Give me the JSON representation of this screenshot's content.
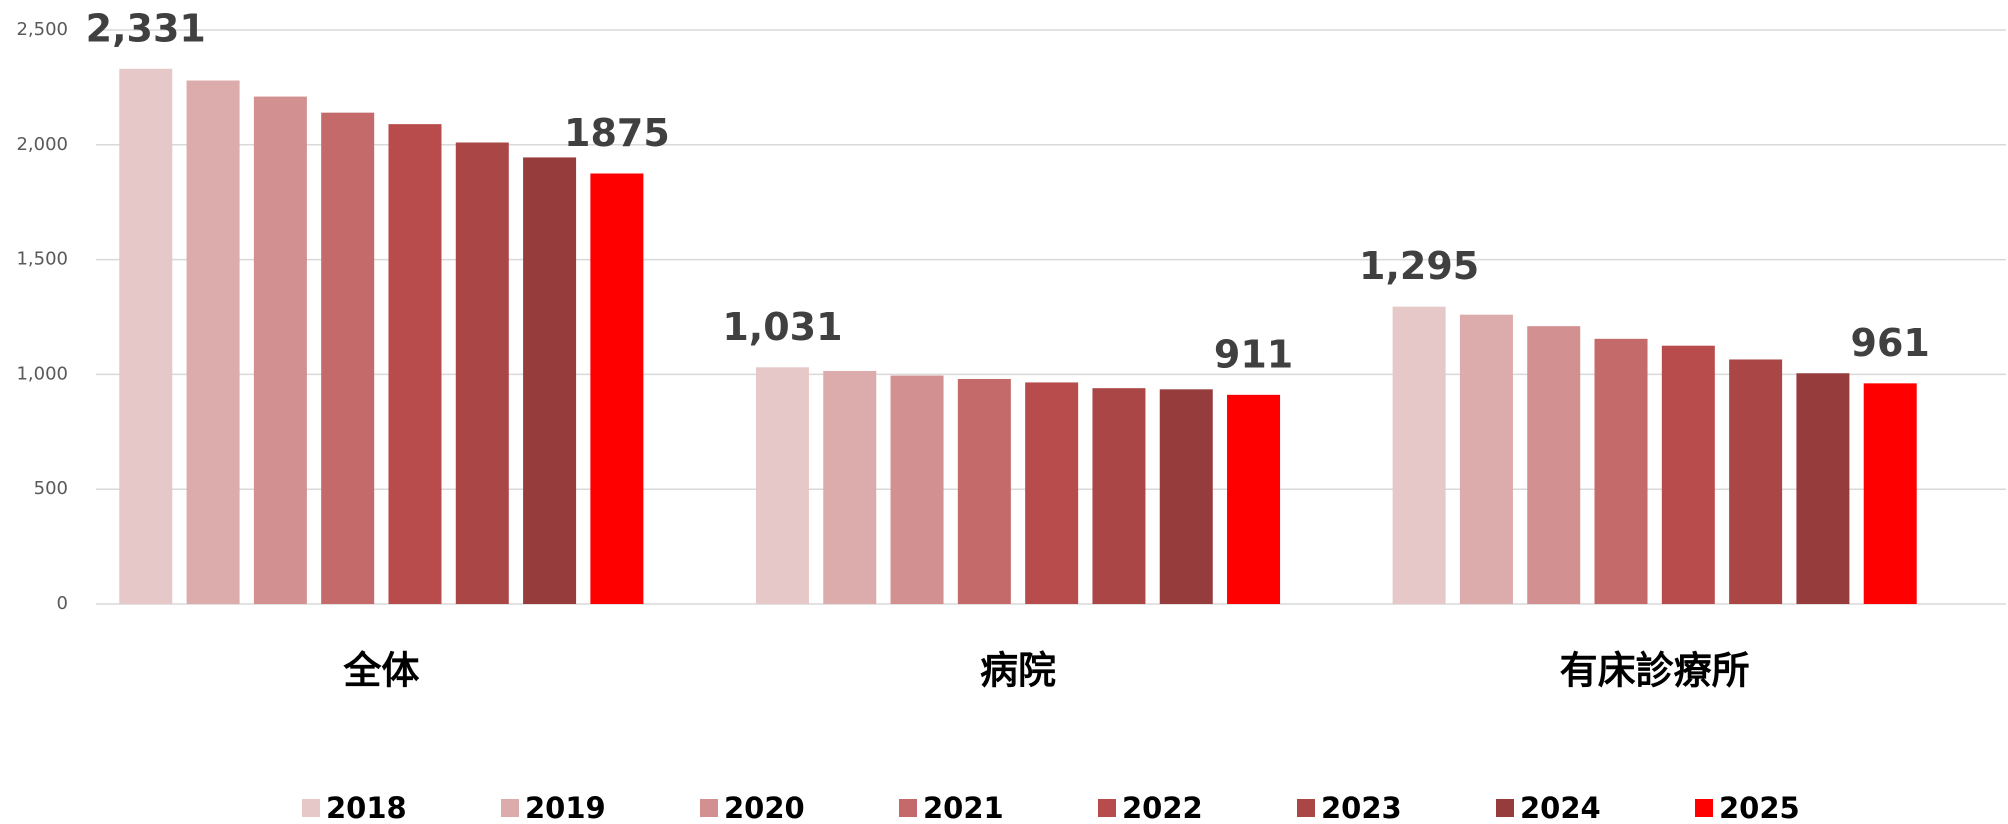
{
  "chart_data": {
    "type": "bar",
    "categories": [
      "全体",
      "病院",
      "有床診療所"
    ],
    "series": [
      {
        "name": "2018",
        "color": "#e6c8c8",
        "values": [
          2331,
          1031,
          1295
        ],
        "value_labels": [
          "2,331",
          "1,031",
          "1,295"
        ]
      },
      {
        "name": "2019",
        "color": "#dcabab",
        "values": [
          2280,
          1015,
          1260
        ]
      },
      {
        "name": "2020",
        "color": "#d29090",
        "values": [
          2210,
          995,
          1210
        ]
      },
      {
        "name": "2021",
        "color": "#c46a6a",
        "values": [
          2140,
          980,
          1155
        ]
      },
      {
        "name": "2022",
        "color": "#b84c4c",
        "values": [
          2090,
          965,
          1125
        ]
      },
      {
        "name": "2023",
        "color": "#aa4646",
        "values": [
          2010,
          940,
          1065
        ]
      },
      {
        "name": "2024",
        "color": "#963c3c",
        "values": [
          1945,
          935,
          1005
        ]
      },
      {
        "name": "2025",
        "color": "#ff0000",
        "values": [
          1875,
          911,
          961
        ],
        "value_labels": [
          "1875",
          "911",
          "961"
        ]
      }
    ],
    "ylim": [
      0,
      2500
    ],
    "yticks": [
      0,
      500,
      {
        "value": 1000,
        "label": "1,000"
      },
      {
        "value": 1500,
        "label": "1,500"
      },
      {
        "value": 2000,
        "label": "2,000"
      },
      {
        "value": 2500,
        "label": "2,500"
      }
    ],
    "grid": true,
    "legend": "bottom"
  }
}
